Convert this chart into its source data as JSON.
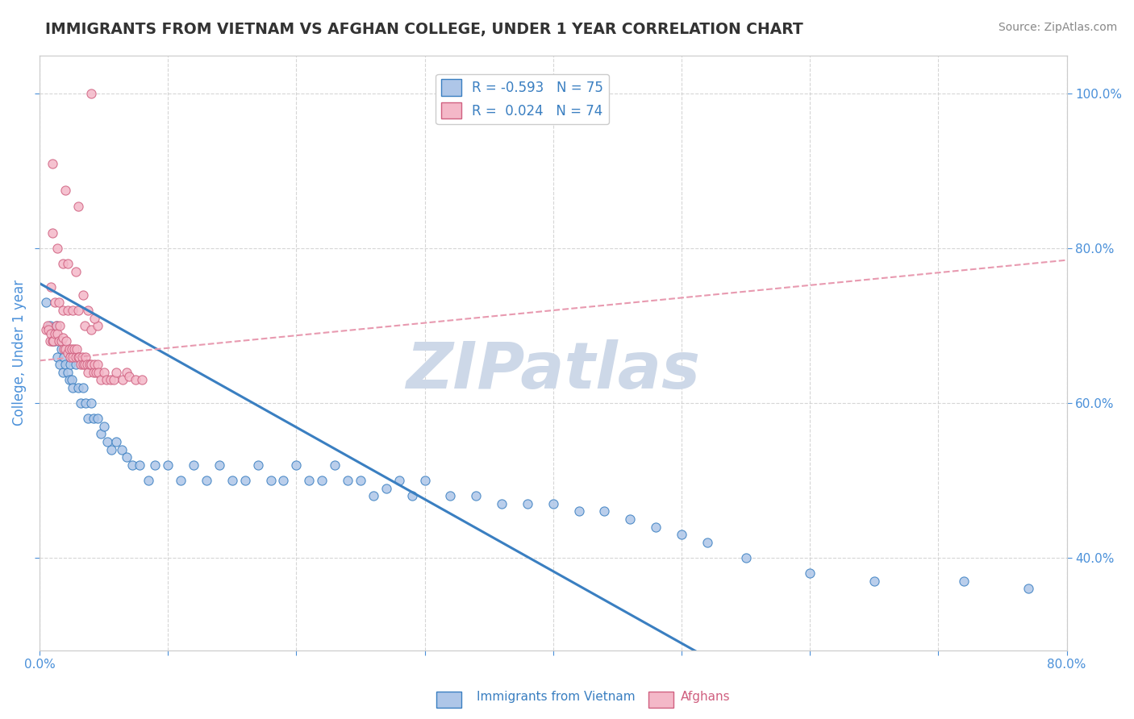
{
  "title": "IMMIGRANTS FROM VIETNAM VS AFGHAN COLLEGE, UNDER 1 YEAR CORRELATION CHART",
  "source_text": "Source: ZipAtlas.com",
  "ylabel": "College, Under 1 year",
  "xlim": [
    0.0,
    0.8
  ],
  "ylim": [
    0.28,
    1.05
  ],
  "xticks": [
    0.0,
    0.1,
    0.2,
    0.3,
    0.4,
    0.5,
    0.6,
    0.7,
    0.8
  ],
  "xticklabels": [
    "0.0%",
    "",
    "",
    "",
    "",
    "",
    "",
    "",
    "80.0%"
  ],
  "yticks": [
    0.4,
    0.6,
    0.8,
    1.0
  ],
  "yticklabels": [
    "40.0%",
    "60.0%",
    "80.0%",
    "100.0%"
  ],
  "legend_blue_label": "R = -0.593   N = 75",
  "legend_pink_label": "R =  0.024   N = 74",
  "legend_blue_color": "#aec6e8",
  "legend_pink_color": "#f4b8c8",
  "line_blue_color": "#3a7fc1",
  "line_pink_color": "#e89ab0",
  "watermark": "ZIPatlas",
  "watermark_color": "#cdd8e8",
  "blue_scatter_x": [
    0.005,
    0.008,
    0.01,
    0.012,
    0.013,
    0.014,
    0.015,
    0.016,
    0.017,
    0.018,
    0.019,
    0.02,
    0.021,
    0.022,
    0.023,
    0.024,
    0.025,
    0.026,
    0.028,
    0.03,
    0.032,
    0.034,
    0.036,
    0.038,
    0.04,
    0.042,
    0.045,
    0.048,
    0.05,
    0.053,
    0.056,
    0.06,
    0.064,
    0.068,
    0.072,
    0.078,
    0.085,
    0.09,
    0.1,
    0.11,
    0.12,
    0.13,
    0.14,
    0.15,
    0.16,
    0.17,
    0.18,
    0.19,
    0.2,
    0.21,
    0.22,
    0.23,
    0.24,
    0.25,
    0.26,
    0.27,
    0.28,
    0.29,
    0.3,
    0.32,
    0.34,
    0.36,
    0.38,
    0.4,
    0.42,
    0.44,
    0.46,
    0.48,
    0.5,
    0.52,
    0.55,
    0.6,
    0.65,
    0.72,
    0.77
  ],
  "blue_scatter_y": [
    0.73,
    0.7,
    0.68,
    0.68,
    0.7,
    0.66,
    0.68,
    0.65,
    0.67,
    0.64,
    0.66,
    0.65,
    0.67,
    0.64,
    0.63,
    0.65,
    0.63,
    0.62,
    0.65,
    0.62,
    0.6,
    0.62,
    0.6,
    0.58,
    0.6,
    0.58,
    0.58,
    0.56,
    0.57,
    0.55,
    0.54,
    0.55,
    0.54,
    0.53,
    0.52,
    0.52,
    0.5,
    0.52,
    0.52,
    0.5,
    0.52,
    0.5,
    0.52,
    0.5,
    0.5,
    0.52,
    0.5,
    0.5,
    0.52,
    0.5,
    0.5,
    0.52,
    0.5,
    0.5,
    0.48,
    0.49,
    0.5,
    0.48,
    0.5,
    0.48,
    0.48,
    0.47,
    0.47,
    0.47,
    0.46,
    0.46,
    0.45,
    0.44,
    0.43,
    0.42,
    0.4,
    0.38,
    0.37,
    0.37,
    0.36
  ],
  "pink_scatter_x": [
    0.005,
    0.006,
    0.007,
    0.008,
    0.009,
    0.01,
    0.011,
    0.012,
    0.013,
    0.014,
    0.015,
    0.016,
    0.017,
    0.018,
    0.019,
    0.02,
    0.021,
    0.022,
    0.023,
    0.024,
    0.025,
    0.026,
    0.027,
    0.028,
    0.029,
    0.03,
    0.031,
    0.032,
    0.033,
    0.034,
    0.035,
    0.036,
    0.037,
    0.038,
    0.039,
    0.04,
    0.042,
    0.043,
    0.044,
    0.045,
    0.046,
    0.048,
    0.05,
    0.052,
    0.055,
    0.058,
    0.06,
    0.065,
    0.068,
    0.07,
    0.075,
    0.08,
    0.009,
    0.012,
    0.015,
    0.018,
    0.022,
    0.026,
    0.03,
    0.035,
    0.04,
    0.045,
    0.01,
    0.014,
    0.018,
    0.022,
    0.028,
    0.034,
    0.038,
    0.043,
    0.01,
    0.02,
    0.03,
    0.04
  ],
  "pink_scatter_y": [
    0.695,
    0.7,
    0.695,
    0.68,
    0.69,
    0.68,
    0.68,
    0.69,
    0.7,
    0.69,
    0.68,
    0.7,
    0.68,
    0.685,
    0.67,
    0.67,
    0.68,
    0.665,
    0.67,
    0.66,
    0.67,
    0.66,
    0.67,
    0.66,
    0.67,
    0.66,
    0.66,
    0.65,
    0.66,
    0.65,
    0.65,
    0.66,
    0.65,
    0.64,
    0.65,
    0.65,
    0.64,
    0.65,
    0.64,
    0.65,
    0.64,
    0.63,
    0.64,
    0.63,
    0.63,
    0.63,
    0.64,
    0.63,
    0.64,
    0.635,
    0.63,
    0.63,
    0.75,
    0.73,
    0.73,
    0.72,
    0.72,
    0.72,
    0.72,
    0.7,
    0.695,
    0.7,
    0.82,
    0.8,
    0.78,
    0.78,
    0.77,
    0.74,
    0.72,
    0.71,
    0.91,
    0.875,
    0.855,
    1.0
  ],
  "blue_line_x": [
    0.0,
    0.8
  ],
  "blue_line_y": [
    0.755,
    0.01
  ],
  "pink_line_x": [
    0.0,
    0.8
  ],
  "pink_line_y": [
    0.655,
    0.785
  ],
  "grid_color": "#cccccc",
  "bg_color": "#ffffff",
  "title_color": "#333333",
  "axis_color": "#4a90d9",
  "tick_color": "#4a90d9"
}
